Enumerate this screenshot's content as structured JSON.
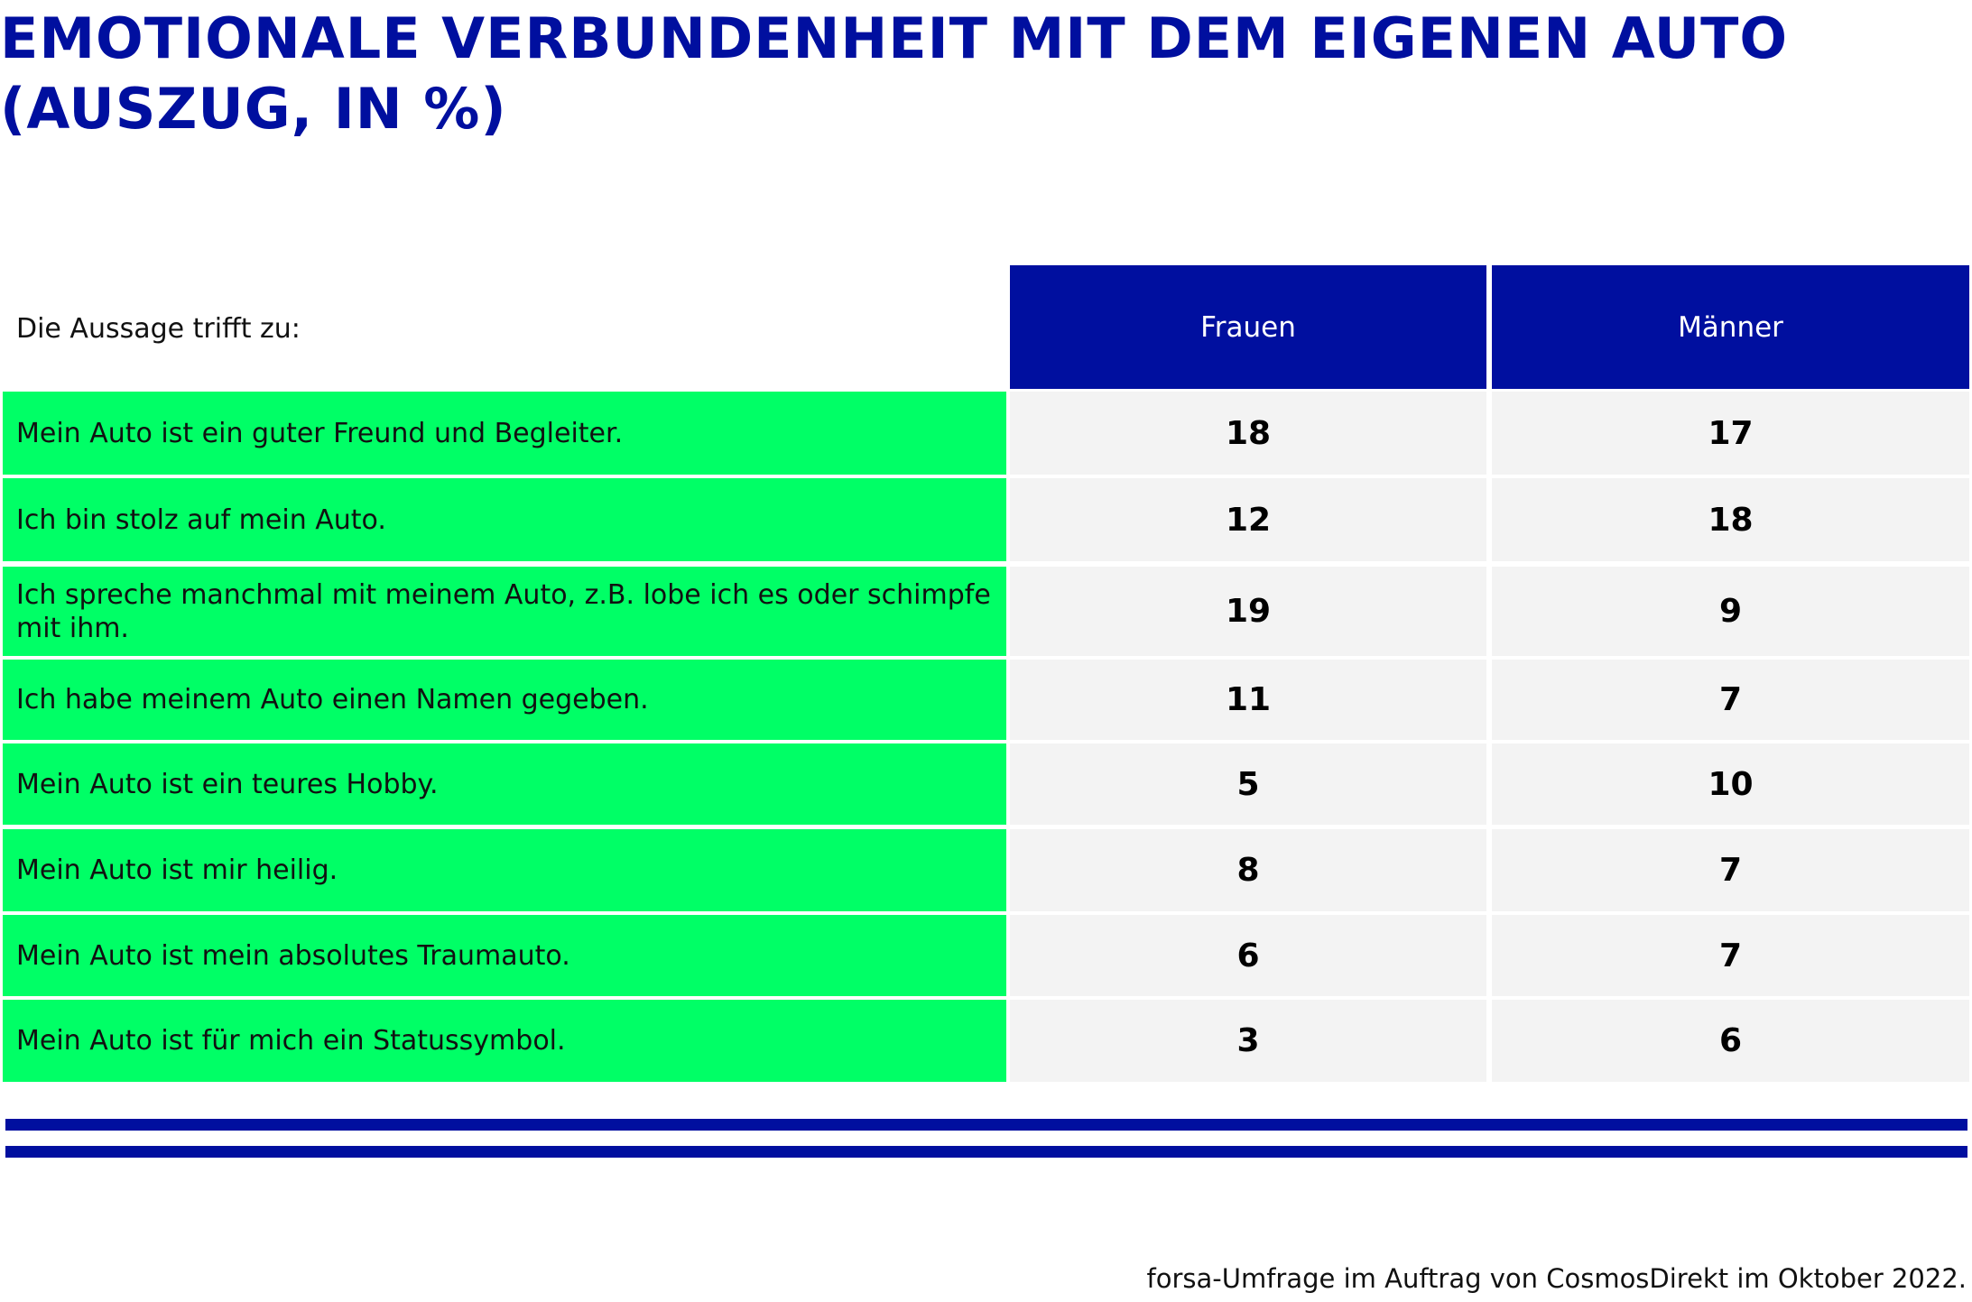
{
  "title_lines": [
    "EMOTIONALE VERBUNDENHEIT MIT DEM EIGENEN AUTO",
    "(AUSZUG, IN %)"
  ],
  "row_header": "Die Aussage trifft zu:",
  "columns": [
    "Frauen",
    "Männer"
  ],
  "source": "forsa-Umfrage im Auftrag von CosmosDirekt im Oktober 2022.",
  "colors": {
    "title": "#000f9f",
    "header_bg": "#000f9f",
    "label_bg": "#00ff66",
    "value_bg": "#f3f3f3"
  },
  "chart_data": {
    "type": "table",
    "title": "EMOTIONALE VERBUNDENHEIT MIT DEM EIGENEN AUTO (AUSZUG, IN %)",
    "row_header": "Die Aussage trifft zu:",
    "columns": [
      "Frauen",
      "Männer"
    ],
    "rows": [
      {
        "label": "Mein Auto ist ein guter Freund und Begleiter.",
        "values": [
          "18",
          "17"
        ]
      },
      {
        "label": "Ich bin stolz auf mein Auto.",
        "values": [
          "12",
          "18"
        ]
      },
      {
        "label": "Ich spreche manchmal mit meinem Auto, z.B. lobe ich es oder schimpfe mit ihm.",
        "values": [
          "19",
          "9"
        ]
      },
      {
        "label": "Ich habe meinem Auto einen Namen gegeben.",
        "values": [
          "11",
          "7"
        ]
      },
      {
        "label": "Mein Auto ist ein teures Hobby.",
        "values": [
          "5",
          "10"
        ]
      },
      {
        "label": "Mein Auto ist mir heilig.",
        "values": [
          "8",
          "7"
        ]
      },
      {
        "label": "Mein Auto ist mein absolutes Traumauto.",
        "values": [
          "6",
          "7"
        ]
      },
      {
        "label": "Mein Auto ist für mich ein Statussymbol.",
        "values": [
          "3",
          "6"
        ]
      }
    ]
  }
}
